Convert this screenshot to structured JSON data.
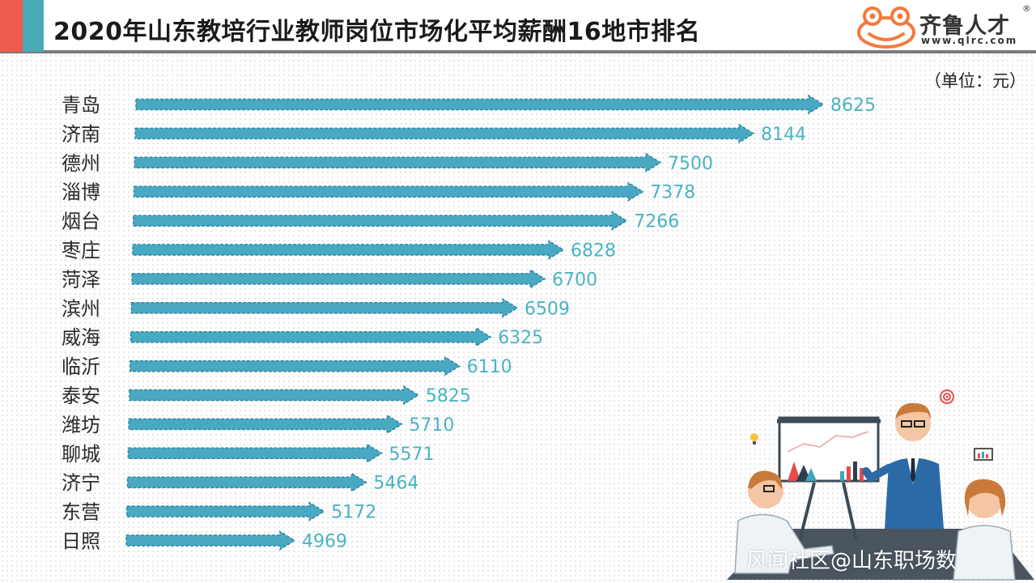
{
  "header": {
    "title": "2020年山东教培行业教师岗位市场化平均薪酬16地市排名",
    "logo_name": "齐鲁人才",
    "logo_url": "www.qlrc.com",
    "logo_reg": "®"
  },
  "unit_label": "（单位：元）",
  "watermark": "风闻社区@山东职场数",
  "colors": {
    "bar": "#49a9c3",
    "bar_dark": "#2f88a3",
    "value_text": "#4bb3c2",
    "accent_red": "#ef5b4c",
    "accent_teal": "#49a9b4",
    "logo_orange": "#f47a3c"
  },
  "chart_data": {
    "type": "bar",
    "orientation": "horizontal",
    "categories": [
      "青岛",
      "济南",
      "德州",
      "淄博",
      "烟台",
      "枣庄",
      "菏泽",
      "滨州",
      "威海",
      "临沂",
      "泰安",
      "潍坊",
      "聊城",
      "济宁",
      "东营",
      "日照"
    ],
    "values": [
      8625,
      8144,
      7500,
      7378,
      7266,
      6828,
      6700,
      6509,
      6325,
      6110,
      5825,
      5710,
      5571,
      5464,
      5172,
      4969
    ],
    "value_labels": [
      "8625",
      "8144",
      "7500",
      "7378",
      "7266",
      "6828",
      "6700",
      "6509",
      "6325",
      "6110",
      "5825",
      "5710",
      "5571",
      "5464",
      "5172",
      "4969"
    ],
    "title": "2020年山东教培行业教师岗位市场化平均薪酬16地市排名",
    "unit": "元",
    "bar_style": "arrow",
    "grid": false,
    "legend": "none"
  }
}
